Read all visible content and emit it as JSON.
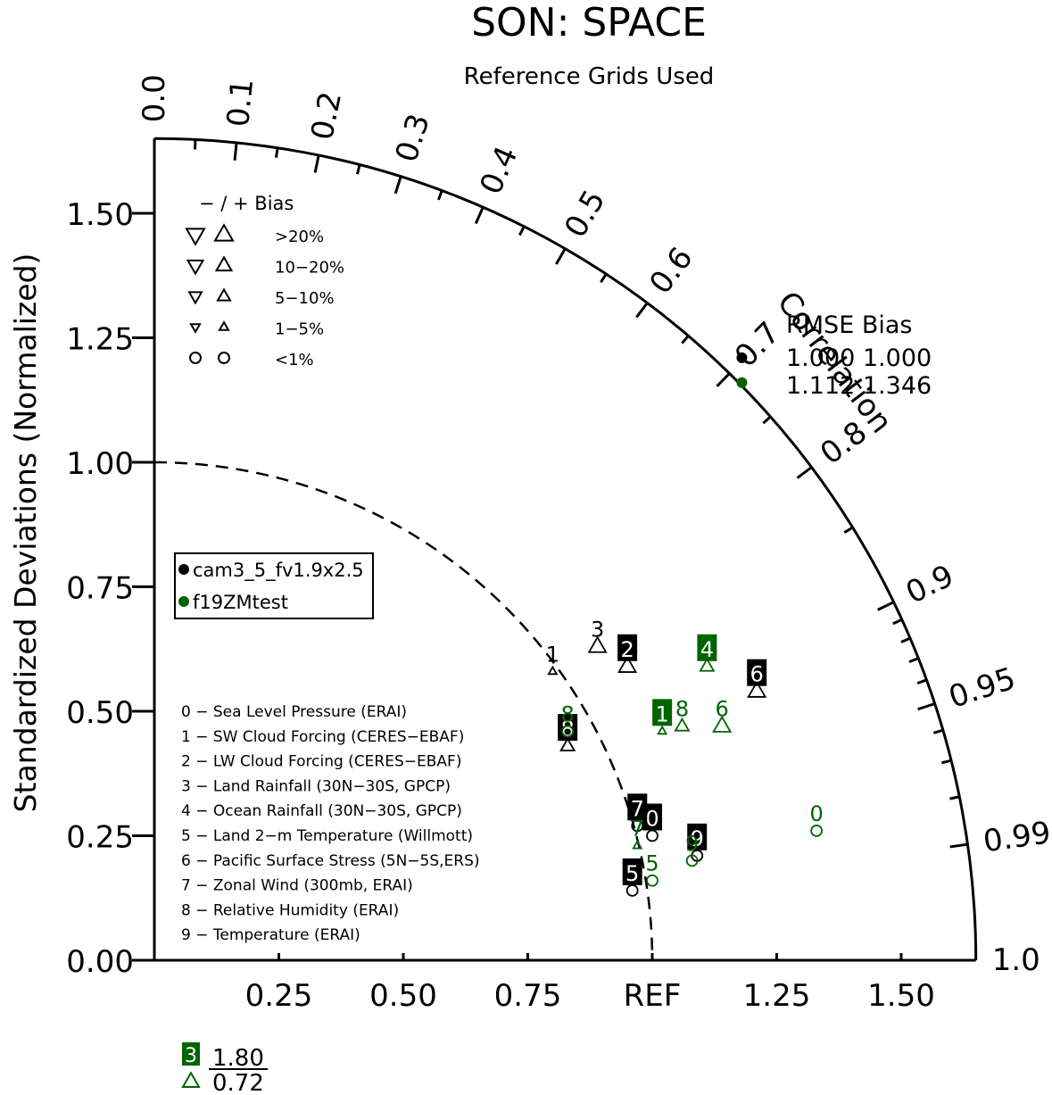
{
  "chart_data": {
    "type": "taylor",
    "title": "SON: SPACE",
    "subtitle": "Reference Grids Used",
    "ylabel": "Standardized Deviations (Normalized)",
    "correlation_label": "Correlation",
    "ref_label": "REF",
    "std_max": 1.65,
    "y_ticks": [
      "0.00",
      "0.25",
      "0.50",
      "0.75",
      "1.00",
      "1.25",
      "1.50"
    ],
    "x_ticks": [
      "0.25",
      "0.50",
      "0.75",
      "REF",
      "1.25",
      "1.50"
    ],
    "corr_labels": [
      "0.0",
      "0.1",
      "0.2",
      "0.3",
      "0.4",
      "0.5",
      "0.6",
      "0.7",
      "0.8",
      "0.9",
      "0.95",
      "0.99",
      "1.0"
    ],
    "bias_key": {
      "header": "− / +    Bias",
      "rows": [
        ">20%",
        "10−20%",
        "5−10%",
        "1−5%",
        "<1%"
      ]
    },
    "rmse_table": {
      "header": "RMSE  Bias",
      "rows": [
        "1.000 1.000",
        "1.112 1.346"
      ]
    },
    "cases": [
      {
        "name": "cam3_5_fv1.9x2.5",
        "color": "#000000"
      },
      {
        "name": "f19ZMtest",
        "color": "#006400"
      }
    ],
    "variables": [
      "0 − Sea Level Pressure (ERAI)",
      "1 − SW Cloud Forcing (CERES−EBAF)",
      "2 − LW Cloud Forcing (CERES−EBAF)",
      "3 − Land Rainfall (30N−30S, GPCP)",
      "4 − Ocean Rainfall (30N−30S, GPCP)",
      "5 − Land 2−m Temperature (Willmott)",
      "6 − Pacific Surface Stress (5N−5S,ERS)",
      "7 − Zonal Wind (300mb, ERAI)",
      "8 − Relative Humidity (ERAI)",
      "9 − Temperature (ERAI)"
    ],
    "case_summary_points": [
      {
        "case": 0,
        "x": 1.18,
        "y": 1.21
      },
      {
        "case": 1,
        "x": 1.18,
        "y": 1.16
      }
    ],
    "points": [
      {
        "case": 0,
        "var": "0",
        "x": 1.0,
        "y": 0.25,
        "marker": "circle",
        "boxed": true
      },
      {
        "case": 0,
        "var": "1",
        "x": 0.8,
        "y": 0.58,
        "marker": "up-xs",
        "boxed": false
      },
      {
        "case": 0,
        "var": "2",
        "x": 0.95,
        "y": 0.59,
        "marker": "up-l",
        "boxed": true
      },
      {
        "case": 0,
        "var": "3",
        "x": 0.89,
        "y": 0.63,
        "marker": "up-l",
        "boxed": false
      },
      {
        "case": 0,
        "var": "5",
        "x": 0.96,
        "y": 0.14,
        "marker": "circle",
        "boxed": true
      },
      {
        "case": 0,
        "var": "6",
        "x": 1.21,
        "y": 0.54,
        "marker": "up-l",
        "boxed": true
      },
      {
        "case": 0,
        "var": "7",
        "x": 0.97,
        "y": 0.27,
        "marker": "circle",
        "boxed": true
      },
      {
        "case": 0,
        "var": "8",
        "x": 0.83,
        "y": 0.43,
        "marker": "up-m",
        "boxed": true
      },
      {
        "case": 0,
        "var": "9",
        "x": 1.09,
        "y": 0.21,
        "marker": "circle",
        "boxed": true
      },
      {
        "case": 1,
        "var": "0",
        "x": 1.33,
        "y": 0.26,
        "marker": "circle",
        "boxed": false
      },
      {
        "case": 1,
        "var": "1",
        "x": 1.02,
        "y": 0.46,
        "marker": "up-xs",
        "boxed": true
      },
      {
        "case": 1,
        "var": "4",
        "x": 1.11,
        "y": 0.59,
        "marker": "up-m",
        "boxed": true
      },
      {
        "case": 1,
        "var": "5",
        "x": 1.0,
        "y": 0.16,
        "marker": "circle",
        "boxed": false
      },
      {
        "case": 1,
        "var": "6",
        "x": 1.14,
        "y": 0.47,
        "marker": "up-l",
        "boxed": false
      },
      {
        "case": 1,
        "var": "7",
        "x": 0.97,
        "y": 0.23,
        "marker": "up-xs",
        "boxed": false
      },
      {
        "case": 1,
        "var": "8",
        "x": 1.06,
        "y": 0.47,
        "marker": "up-m",
        "boxed": false
      },
      {
        "case": 1,
        "var": "8",
        "x": 0.83,
        "y": 0.46,
        "marker": "circle",
        "boxed": false
      },
      {
        "case": 1,
        "var": "9",
        "x": 1.08,
        "y": 0.2,
        "marker": "circle",
        "boxed": false
      }
    ],
    "offscale": [
      {
        "case": 1,
        "var": "3",
        "marker": "up-l",
        "std": "1.80",
        "corr": "0.72"
      }
    ]
  }
}
